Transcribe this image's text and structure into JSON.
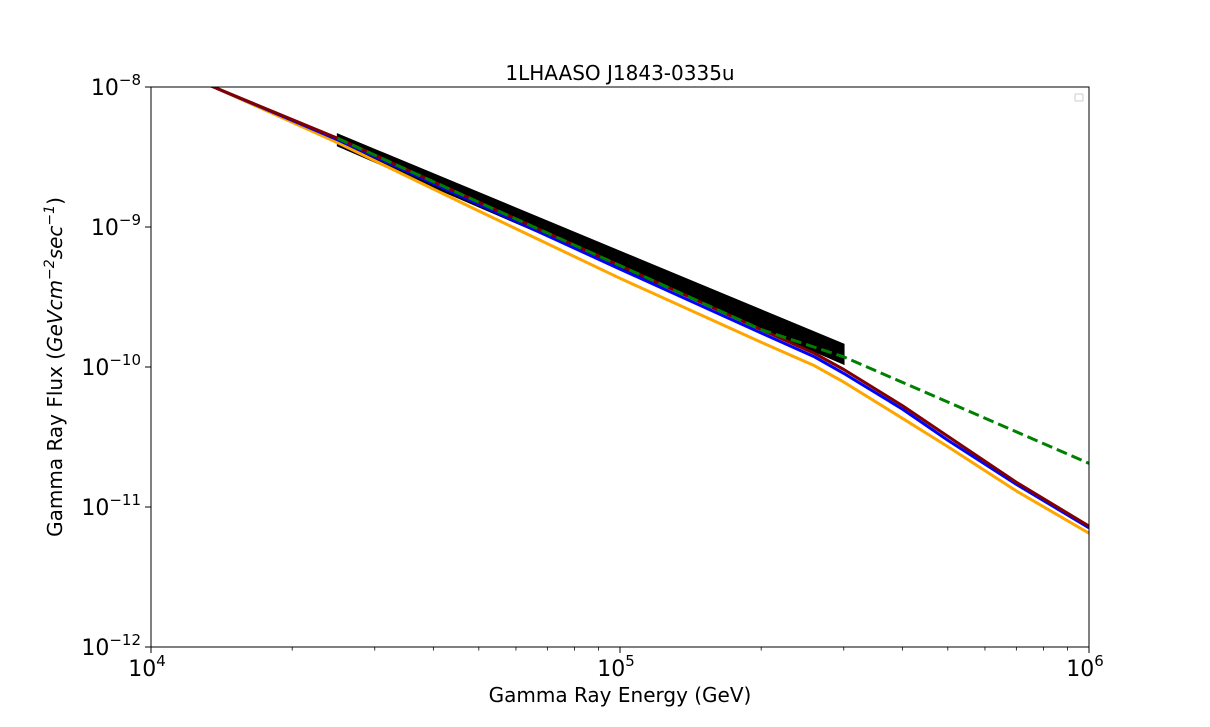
{
  "chart_data": {
    "type": "line",
    "title": "1LHAASO J1843-0335u",
    "xlabel": "Gamma Ray Energy (GeV)",
    "ylabel_prefix": "Gamma Ray Flux (",
    "ylabel_math": "GeVcm",
    "ylabel_exp1": "−2",
    "ylabel_mid": "sec",
    "ylabel_exp2": "−1",
    "ylabel_suffix": ")",
    "x_scale": "log",
    "y_scale": "log",
    "xlim": [
      10000,
      1000000
    ],
    "ylim": [
      1e-12,
      1e-08
    ],
    "x_ticks": [
      {
        "value": 10000,
        "base": "10",
        "exp": "4"
      },
      {
        "value": 100000,
        "base": "10",
        "exp": "5"
      },
      {
        "value": 1000000,
        "base": "10",
        "exp": "6"
      }
    ],
    "y_ticks": [
      {
        "value": 1e-12,
        "base": "10",
        "exp": "−12"
      },
      {
        "value": 1e-11,
        "base": "10",
        "exp": "−11"
      },
      {
        "value": 1e-10,
        "base": "10",
        "exp": "−10"
      },
      {
        "value": 1e-09,
        "base": "10",
        "exp": "−9"
      },
      {
        "value": 1e-08,
        "base": "10",
        "exp": "−8"
      }
    ],
    "grid": false,
    "legend": "upper right (empty)",
    "band": {
      "color": "#000000",
      "x": [
        25000,
        300000
      ],
      "y_upper": [
        4.6e-09,
        1.45e-10
      ],
      "y_lower": [
        3.8e-09,
        1.05e-10
      ]
    },
    "series": [
      {
        "color": "#ffa500",
        "dash": false,
        "x": [
          10000,
          13600,
          25000,
          50000,
          100000,
          200000,
          260000,
          300000,
          400000,
          500000,
          700000,
          1000000
        ],
        "y": [
          1.45e-08,
          1e-08,
          4e-09,
          1.3e-09,
          4.3e-10,
          1.5e-10,
          1.02e-10,
          7.8e-11,
          4.3e-11,
          2.7e-11,
          1.3e-11,
          6.5e-12
        ]
      },
      {
        "color": "#0000ff",
        "dash": false,
        "x": [
          10000,
          13600,
          25000,
          50000,
          100000,
          200000,
          260000,
          300000,
          400000,
          500000,
          700000,
          1000000
        ],
        "y": [
          1.45e-08,
          1e-08,
          4.2e-09,
          1.45e-09,
          5e-10,
          1.75e-10,
          1.18e-10,
          9e-11,
          5e-11,
          3e-11,
          1.45e-11,
          7.1e-12
        ]
      },
      {
        "color": "#800000",
        "dash": false,
        "x": [
          10000,
          13600,
          25000,
          50000,
          100000,
          200000,
          260000,
          300000,
          400000,
          500000,
          700000,
          1000000
        ],
        "y": [
          1.45e-08,
          1e-08,
          4.3e-09,
          1.5e-09,
          5.3e-10,
          1.85e-10,
          1.25e-10,
          9.6e-11,
          5.3e-11,
          3.2e-11,
          1.5e-11,
          7.3e-12
        ]
      },
      {
        "color": "#008000",
        "dash": true,
        "x": [
          25000,
          50000,
          100000,
          200000,
          300000,
          1000000
        ],
        "y": [
          4.3e-09,
          1.5e-09,
          5.3e-10,
          1.85e-10,
          1.18e-10,
          2.05e-11
        ]
      }
    ]
  }
}
